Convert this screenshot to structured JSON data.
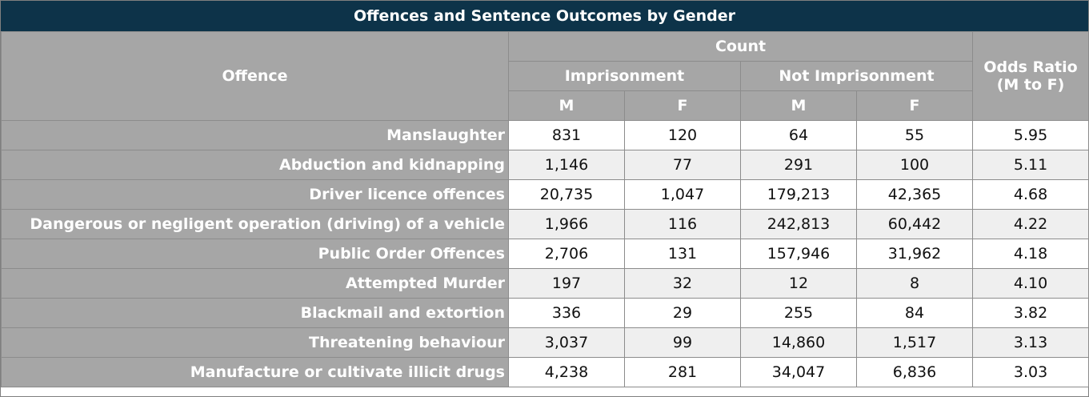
{
  "title": "Offences and Sentence Outcomes by Gender",
  "headers": {
    "offence": "Offence",
    "count": "Count",
    "imprisonment": "Imprisonment",
    "not_imprisonment": "Not Imprisonment",
    "m": "M",
    "f": "F",
    "odds_ratio_line1": "Odds Ratio",
    "odds_ratio_line2": "(M to F)"
  },
  "colors": {
    "title_bg": "#0d3349",
    "header_bg": "#a6a6a6",
    "alt_row": "#efefef"
  },
  "chart_data": {
    "type": "table",
    "title": "Offences and Sentence Outcomes by Gender",
    "columns": [
      "Offence",
      "Imprisonment M",
      "Imprisonment F",
      "Not Imprisonment M",
      "Not Imprisonment F",
      "Odds Ratio (M to F)"
    ],
    "rows": [
      [
        "Manslaughter",
        "831",
        "120",
        "64",
        "55",
        "5.95"
      ],
      [
        "Abduction and kidnapping",
        "1,146",
        "77",
        "291",
        "100",
        "5.11"
      ],
      [
        "Driver licence offences",
        "20,735",
        "1,047",
        "179,213",
        "42,365",
        "4.68"
      ],
      [
        "Dangerous or negligent operation (driving) of a vehicle",
        "1,966",
        "116",
        "242,813",
        "60,442",
        "4.22"
      ],
      [
        "Public Order Offences",
        "2,706",
        "131",
        "157,946",
        "31,962",
        "4.18"
      ],
      [
        "Attempted Murder",
        "197",
        "32",
        "12",
        "8",
        "4.10"
      ],
      [
        "Blackmail and extortion",
        "336",
        "29",
        "255",
        "84",
        "3.82"
      ],
      [
        "Threatening behaviour",
        "3,037",
        "99",
        "14,860",
        "1,517",
        "3.13"
      ],
      [
        "Manufacture or cultivate illicit drugs",
        "4,238",
        "281",
        "34,047",
        "6,836",
        "3.03"
      ]
    ]
  }
}
